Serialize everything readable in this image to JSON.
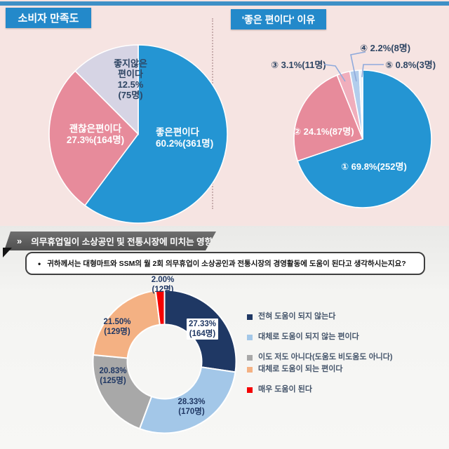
{
  "top_section": {
    "left_panel_title": "소비자 만족도",
    "right_panel_title": "'좋은 편이다' 이유"
  },
  "bottom_section": {
    "banner": {
      "chevron": "»",
      "title": "의무휴업일이 소상공인 및 전통시장에 미치는 영향"
    },
    "question": {
      "bullet": "•",
      "text": "귀하께서는 대형마트와 SSM의 월 2회 의무휴업이 소상공인과 전통시장의 경영활동에 도움이 된다고 생각하시는지요?"
    }
  },
  "chart_data": [
    {
      "type": "pie",
      "title": "소비자 만족도",
      "start_angle_deg": 0,
      "direction": "clockwise",
      "legend_position": "none",
      "slices": [
        {
          "label": "좋은편이다",
          "value": 60.2,
          "count": 361,
          "color": "#2495d3",
          "lines": [
            "좋은편이다",
            "60.2%(361명)"
          ]
        },
        {
          "label": "괜찮은편이다",
          "value": 27.3,
          "count": 164,
          "color": "#e78b9b",
          "lines": [
            "괜찮은편이다",
            "27.3%(164명)"
          ]
        },
        {
          "label": "좋지않은 편이다",
          "value": 12.5,
          "count": 75,
          "color": "#d6d4e4",
          "lines": [
            "좋지않은",
            "편이다",
            "12.5%",
            "(75명)"
          ]
        }
      ]
    },
    {
      "type": "pie",
      "title": "'좋은 편이다' 이유",
      "start_angle_deg": 0,
      "direction": "clockwise",
      "legend_position": "none",
      "slices": [
        {
          "label": "①",
          "value": 69.8,
          "count": 252,
          "color": "#2495d3",
          "display": "① 69.8%(252명)"
        },
        {
          "label": "②",
          "value": 24.1,
          "count": 87,
          "color": "#e78b9b",
          "display": "② 24.1%(87명)"
        },
        {
          "label": "③",
          "value": 3.1,
          "count": 11,
          "color": "#f0aebc",
          "display": "③ 3.1%(11명)"
        },
        {
          "label": "④",
          "value": 2.2,
          "count": 8,
          "color": "#b2cdec",
          "display": "④ 2.2%(8명)"
        },
        {
          "label": "⑤",
          "value": 0.8,
          "count": 3,
          "color": "#e9f1f9",
          "display": "⑤ 0.8%(3명)"
        }
      ]
    },
    {
      "type": "donut",
      "title": "의무휴업일이 소상공인 및 전통시장에 미치는 영향",
      "start_angle_deg": 0,
      "direction": "clockwise",
      "legend_position": "right",
      "slices": [
        {
          "label": "전혀 도움이 되지 않는다",
          "value": 27.33,
          "count": 164,
          "color": "#1f3864",
          "lines": [
            "27.33%",
            "(164명)"
          ]
        },
        {
          "label": "대체로 도움이 되지 않는 편이다",
          "value": 28.33,
          "count": 170,
          "color": "#a3c7e8",
          "lines": [
            "28.33%",
            "(170명)"
          ]
        },
        {
          "label": "이도 저도 아니다(도움도 비도움도 아니다)",
          "value": 20.83,
          "count": 125,
          "color": "#a8a8a8",
          "lines": [
            "20.83%",
            "(125명)"
          ]
        },
        {
          "label": "대체로 도움이 되는 편이다",
          "value": 21.5,
          "count": 129,
          "color": "#f4b183",
          "lines": [
            "21.50%",
            "(129명)"
          ]
        },
        {
          "label": "매우 도움이 된다",
          "value": 2.0,
          "count": 12,
          "color": "#f40000",
          "lines": [
            "2.00%",
            "(12명)"
          ]
        }
      ]
    }
  ]
}
